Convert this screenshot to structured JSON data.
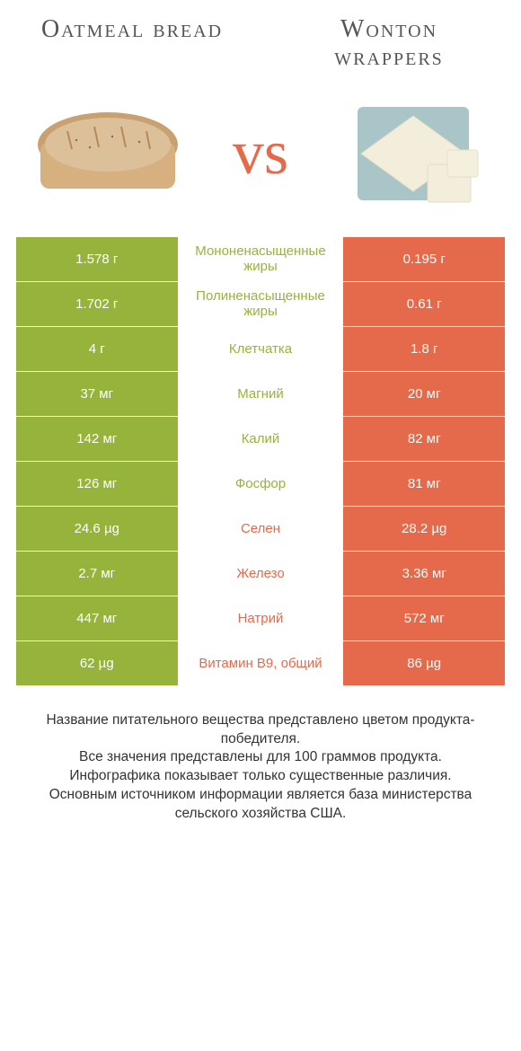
{
  "colors": {
    "left": "#96b33c",
    "right": "#e56a4b",
    "left_winner": "#96b33c",
    "right_winner": "#e56a4b",
    "vs": "#e56a4b",
    "title": "#555555",
    "footer_text": "#333333",
    "background": "#ffffff"
  },
  "header": {
    "left_title": "Oatmeal bread",
    "right_title": "Wonton wrappers"
  },
  "vs_text": "vs",
  "table": {
    "rows": [
      {
        "left": "1.578 г",
        "label": "Мононенасыщенные жиры",
        "right": "0.195 г",
        "winner": "left"
      },
      {
        "left": "1.702 г",
        "label": "Полиненасыщенные жиры",
        "right": "0.61 г",
        "winner": "left"
      },
      {
        "left": "4 г",
        "label": "Клетчатка",
        "right": "1.8 г",
        "winner": "left"
      },
      {
        "left": "37 мг",
        "label": "Магний",
        "right": "20 мг",
        "winner": "left"
      },
      {
        "left": "142 мг",
        "label": "Калий",
        "right": "82 мг",
        "winner": "left"
      },
      {
        "left": "126 мг",
        "label": "Фосфор",
        "right": "81 мг",
        "winner": "left"
      },
      {
        "left": "24.6 µg",
        "label": "Селен",
        "right": "28.2 µg",
        "winner": "right"
      },
      {
        "left": "2.7 мг",
        "label": "Железо",
        "right": "3.36 мг",
        "winner": "right"
      },
      {
        "left": "447 мг",
        "label": "Натрий",
        "right": "572 мг",
        "winner": "right"
      },
      {
        "left": "62 µg",
        "label": "Витамин B9, общий",
        "right": "86 µg",
        "winner": "right"
      }
    ]
  },
  "footer": {
    "line1": "Название питательного вещества представлено цветом продукта-победителя.",
    "line2": "Все значения представлены для 100 граммов продукта.",
    "line3": "Инфографика показывает только существенные различия.",
    "line4": "Основным источником информации является база министерства сельского хозяйства США."
  },
  "typography": {
    "title_fontsize": 28,
    "vs_fontsize": 70,
    "table_fontsize": 15,
    "footer_fontsize": 15.5
  }
}
